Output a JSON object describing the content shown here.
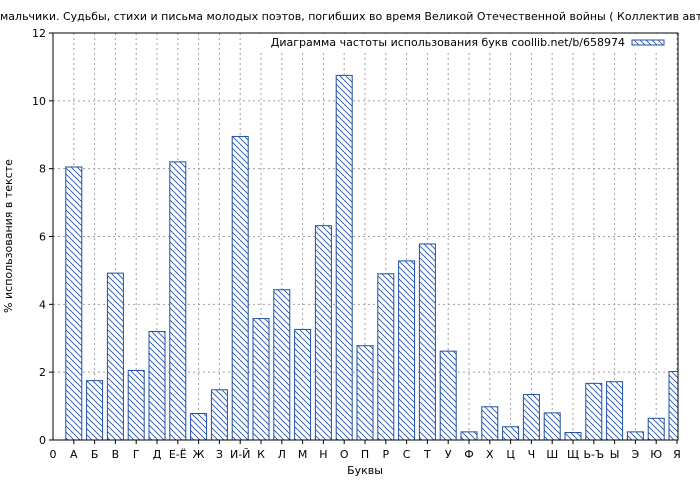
{
  "chart_data": {
    "type": "bar",
    "title": "мальчики. Судьбы, стихи и письма молодых поэтов, погибших во время Великой Отечественной войны ( Коллектив авторов,",
    "xlabel": "Буквы",
    "ylabel": "% использования в тексте",
    "ylim": [
      0,
      12
    ],
    "y_ticks": [
      "0",
      "2",
      "4",
      "6",
      "8",
      "10",
      "12"
    ],
    "x_zero_label": "0",
    "grid": true,
    "legend_position": "top-right",
    "series": [
      {
        "name": "Диаграмма частоты использования букв coollib.net/b/658974",
        "values": [
          8.05,
          1.75,
          4.92,
          2.05,
          3.2,
          8.2,
          0.78,
          1.48,
          8.95,
          3.58,
          4.43,
          3.26,
          6.32,
          10.75,
          2.78,
          4.9,
          5.28,
          5.78,
          2.62,
          0.24,
          0.98,
          0.39,
          1.34,
          0.8,
          0.22,
          1.67,
          1.72,
          0.24,
          0.64,
          2.02
        ]
      }
    ],
    "categories": [
      "А",
      "Б",
      "В",
      "Г",
      "Д",
      "Е-Ё",
      "Ж",
      "З",
      "И-Й",
      "К",
      "Л",
      "М",
      "Н",
      "О",
      "П",
      "Р",
      "С",
      "Т",
      "У",
      "Ф",
      "Х",
      "Ц",
      "Ч",
      "Ш",
      "Щ",
      "Ь-Ъ",
      "Ы",
      "Э",
      "Ю",
      "Я"
    ],
    "colors": {
      "bar_stroke": "#1f4fa3",
      "grid": "#a0a0a0"
    }
  }
}
